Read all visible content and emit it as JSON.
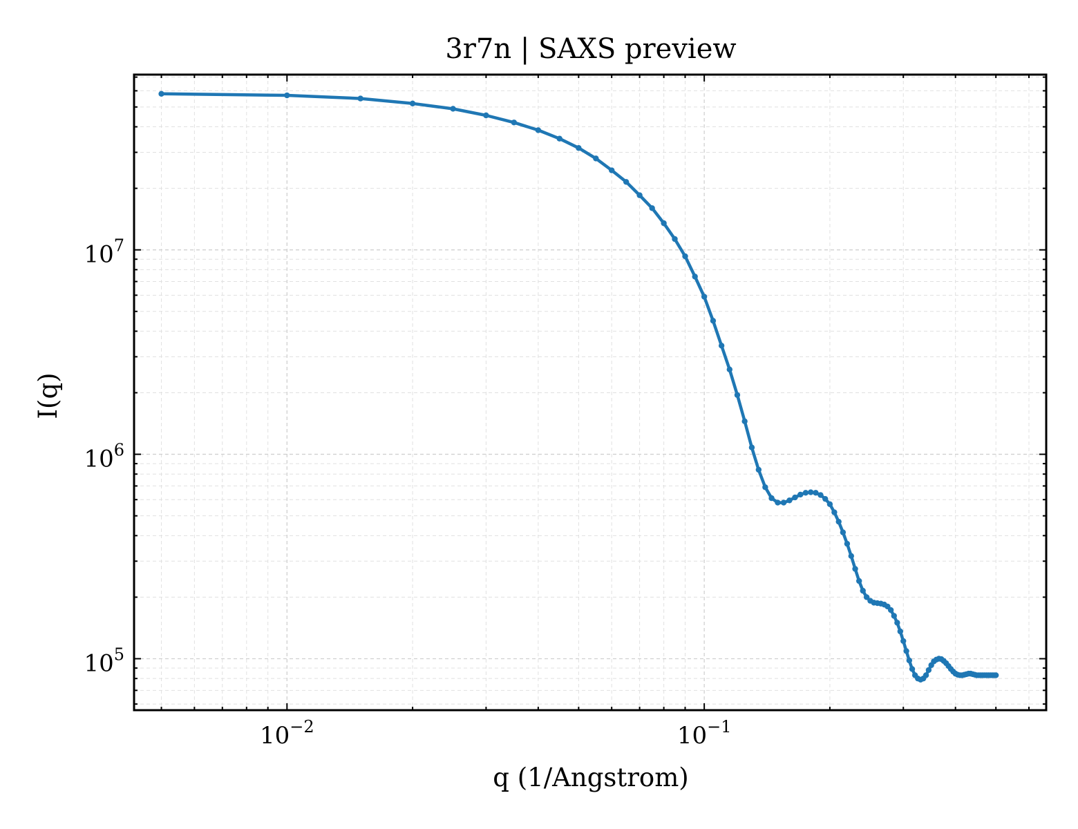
{
  "chart_data": {
    "type": "line",
    "title": "3r7n | SAXS preview",
    "xlabel": "q (1/Angstrom)",
    "ylabel": "I(q)",
    "xscale": "log",
    "yscale": "log",
    "xlim": [
      0.0043,
      0.66
    ],
    "ylim": [
      56000,
      72000000
    ],
    "x_ticks": [
      {
        "value": 0.01,
        "base": "10",
        "exp": "−2"
      },
      {
        "value": 0.1,
        "base": "10",
        "exp": "−1"
      }
    ],
    "y_ticks": [
      {
        "value": 100000,
        "base": "10",
        "exp": "5"
      },
      {
        "value": 1000000,
        "base": "10",
        "exp": "6"
      },
      {
        "value": 10000000,
        "base": "10",
        "exp": "7"
      }
    ],
    "grid": true,
    "marker": "dot",
    "line_color": "#1f77b4",
    "series": [
      {
        "x": [
          0.005,
          0.01,
          0.015,
          0.02,
          0.025,
          0.03,
          0.035,
          0.04,
          0.045,
          0.05,
          0.055,
          0.06,
          0.065,
          0.07,
          0.075,
          0.08,
          0.085,
          0.09,
          0.095,
          0.1,
          0.105,
          0.11,
          0.115,
          0.12,
          0.125,
          0.13,
          0.135,
          0.14,
          0.145,
          0.15,
          0.155,
          0.16,
          0.165,
          0.17,
          0.175,
          0.18,
          0.185,
          0.19,
          0.195,
          0.2,
          0.205,
          0.21,
          0.215,
          0.22,
          0.225,
          0.23,
          0.235,
          0.24,
          0.245,
          0.25,
          0.255,
          0.26,
          0.265,
          0.27,
          0.275,
          0.28,
          0.285,
          0.29,
          0.295,
          0.3,
          0.305,
          0.31,
          0.315,
          0.32,
          0.325,
          0.33,
          0.335,
          0.34,
          0.345,
          0.35,
          0.355,
          0.36,
          0.365,
          0.37,
          0.375,
          0.38,
          0.385,
          0.39,
          0.395,
          0.4,
          0.405,
          0.41,
          0.415,
          0.42,
          0.425,
          0.43,
          0.435,
          0.44,
          0.445,
          0.45,
          0.455,
          0.46,
          0.465,
          0.47,
          0.475,
          0.48,
          0.485,
          0.49,
          0.495,
          0.5
        ],
        "y": [
          58000000,
          57000000,
          55000000,
          52000000,
          49000000,
          45500000,
          42000000,
          38500000,
          35000000,
          31500000,
          28000000,
          24500000,
          21500000,
          18500000,
          16000000,
          13500000,
          11300000,
          9300000,
          7400000,
          5900000,
          4500000,
          3400000,
          2600000,
          1950000,
          1450000,
          1080000,
          840000,
          690000,
          610000,
          580000,
          580000,
          595000,
          615000,
          635000,
          648000,
          652000,
          648000,
          632000,
          605000,
          570000,
          520000,
          468000,
          415000,
          365000,
          318000,
          275000,
          240000,
          215000,
          200000,
          192000,
          188000,
          187000,
          186000,
          184000,
          180000,
          173000,
          162000,
          150000,
          136000,
          122000,
          109000,
          98000,
          89000,
          83000,
          80000,
          79000,
          80000,
          83000,
          88000,
          93000,
          97000,
          99000,
          100000,
          99500,
          97500,
          95000,
          92000,
          89000,
          86500,
          84500,
          83500,
          83000,
          83000,
          83500,
          84000,
          84500,
          84500,
          84000,
          83500,
          83000,
          83000,
          83000,
          83000,
          83000,
          83000,
          83000,
          83000,
          83000,
          83000,
          83000
        ]
      }
    ]
  }
}
